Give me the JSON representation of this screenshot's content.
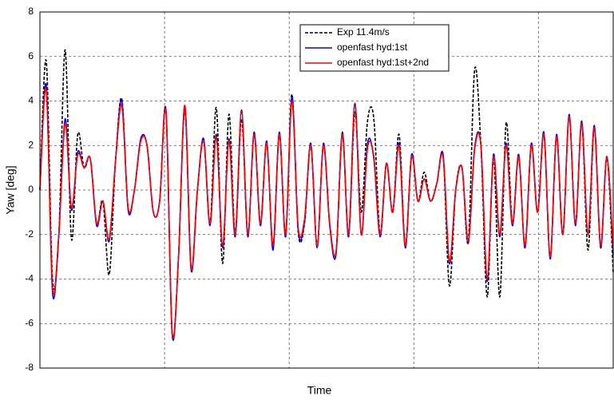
{
  "chart_data": {
    "type": "line",
    "x_label": "Time",
    "y_label": "Yaw [deg]",
    "ylim": [
      -8,
      8
    ],
    "yticks": [
      -8,
      -6,
      -4,
      -2,
      0,
      2,
      4,
      6,
      8
    ],
    "grid": true,
    "legend": "top",
    "series": [
      {
        "name": "Exp 11.4m/s",
        "color": "#000000",
        "style": "dashed",
        "values": [
          0,
          5.8,
          -4,
          -2,
          6.3,
          -2.2,
          2.5,
          1,
          1.4,
          -1.5,
          -0.5,
          -3.8,
          1.3,
          4.1,
          -0.8,
          0,
          2.2,
          2,
          -1,
          -0.5,
          3.6,
          -6.5,
          -3,
          3.6,
          -3.5,
          0,
          2.2,
          -1.5,
          3.7,
          -3.3,
          3.4,
          -2,
          3.2,
          -2,
          2.5,
          -1.5,
          2.1,
          -2.5,
          2.5,
          -2,
          4.3,
          -1.9,
          -1.5,
          2,
          -2.5,
          2,
          -1.5,
          -2.8,
          2.5,
          -2,
          3.5,
          -1,
          3.1,
          3.2,
          -2,
          1.2,
          -1,
          2.5,
          -2.5,
          1.5,
          -0.5,
          0.8,
          -0.5,
          0.3,
          1.5,
          -4.3,
          0,
          1,
          -2.3,
          5.4,
          2,
          -4.8,
          1.5,
          -4.8,
          3,
          -1.5,
          1.5,
          -2.5,
          2,
          -1,
          2.5,
          -3,
          2.4,
          -2,
          3.3,
          -1.5,
          3,
          -2.7,
          2.8,
          -2.5,
          1.5,
          -3.7
        ]
      },
      {
        "name": "openfast hyd:1st",
        "color": "#0000ff",
        "style": "solid",
        "values": [
          0,
          4.7,
          -4.6,
          -2,
          3.2,
          -0.9,
          1.7,
          1,
          1.4,
          -1.6,
          -0.5,
          -2.3,
          1.3,
          4,
          -0.9,
          0,
          2.3,
          2,
          -1,
          -0.5,
          3.6,
          -6.5,
          -3,
          3.8,
          -3.6,
          0,
          2.3,
          -1.6,
          2.5,
          -2.6,
          2.3,
          -2.1,
          3.6,
          -2.1,
          2.6,
          -1.6,
          2.2,
          -2.7,
          2.6,
          -2.1,
          4.2,
          -1.8,
          -1.4,
          2.1,
          -2.6,
          2.1,
          -1.6,
          -2.9,
          2.6,
          -2.1,
          3.9,
          -2,
          2.1,
          1.4,
          -2.1,
          1.2,
          -1,
          2.1,
          -2.6,
          1.6,
          -0.5,
          0.5,
          -0.5,
          0.3,
          1.6,
          -3.3,
          0,
          1,
          -2.4,
          1.9,
          2,
          -4.1,
          1.6,
          -2.1,
          2.1,
          -1.6,
          1.6,
          -2.6,
          2.1,
          -1,
          2.6,
          -3.1,
          2.5,
          -2,
          3.4,
          -1.6,
          3.1,
          -2,
          2.9,
          -2.6,
          1.5,
          -2.9
        ]
      },
      {
        "name": "openfast hyd:1st+2nd",
        "color": "#ff0000",
        "style": "solid",
        "values": [
          0,
          4.5,
          -4.4,
          -2,
          3,
          -0.8,
          1.6,
          1,
          1.4,
          -1.5,
          -0.5,
          -2.2,
          1.3,
          3.8,
          -0.8,
          0,
          2.2,
          2,
          -1,
          -0.5,
          3.5,
          -6.4,
          -3,
          3.8,
          -3.5,
          0,
          2.2,
          -1.5,
          2.4,
          -2.5,
          2.2,
          -2,
          3.5,
          -2,
          2.5,
          -1.5,
          2.1,
          -2.5,
          2.5,
          -2,
          4,
          -1.7,
          -1.3,
          2,
          -2.5,
          2,
          -1.5,
          -2.8,
          2.5,
          -2,
          3.9,
          -2,
          1.9,
          1.5,
          -2,
          1.2,
          -1,
          2,
          -2.5,
          1.5,
          -0.5,
          0.5,
          -0.5,
          0.3,
          1.5,
          -3.2,
          0,
          1,
          -2.3,
          1.8,
          2,
          -4,
          1.5,
          -2,
          2,
          -1.5,
          1.5,
          -2.5,
          2,
          -1,
          2.5,
          -3,
          2.4,
          -2,
          3.3,
          -1.5,
          3,
          -2,
          2.8,
          -2.5,
          1.5,
          -2.8
        ]
      }
    ]
  }
}
